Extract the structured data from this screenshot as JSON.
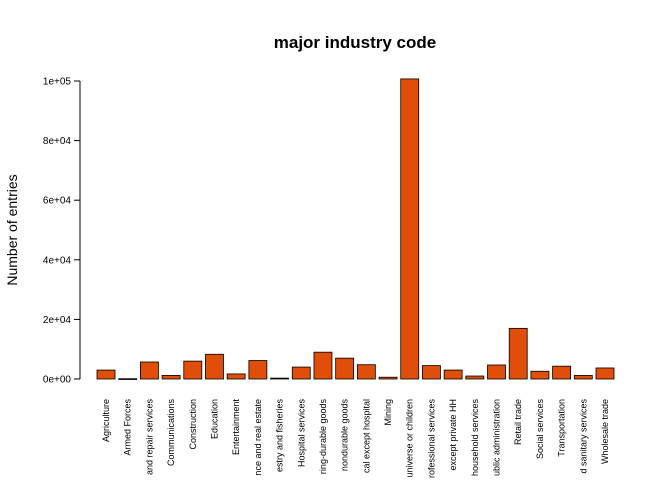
{
  "chart_data": {
    "type": "bar",
    "title": "major industry code",
    "xlabel": "",
    "ylabel": "Number of entries",
    "ylim": [
      0,
      100000
    ],
    "yticks": [
      0,
      20000,
      40000,
      60000,
      80000,
      100000
    ],
    "ytick_labels": [
      "0e+00",
      "2e+04",
      "4e+04",
      "6e+04",
      "8e+04",
      "1e+05"
    ],
    "bar_color": "#e04e0a",
    "categories": [
      "Agriculture",
      "Armed Forces",
      "and repair services",
      "Communications",
      "Construction",
      "Education",
      "Entertainment",
      "nce and real estate",
      "estry and fisheries",
      "Hospital services",
      "ring-durable goods",
      "nondurable goods",
      "cal except hospital",
      "Mining",
      "universe or children",
      "rofessional services",
      "except private HH",
      "household services",
      "ublic administration",
      "Retail trade",
      "Social services",
      "Transportation",
      "d sanitary services",
      "Wholesale trade"
    ],
    "values": [
      3000,
      100,
      5700,
      1200,
      6000,
      8300,
      1700,
      6200,
      300,
      4000,
      9000,
      7000,
      4800,
      600,
      100700,
      4500,
      3000,
      1000,
      4700,
      17000,
      2600,
      4300,
      1200,
      3700
    ]
  }
}
